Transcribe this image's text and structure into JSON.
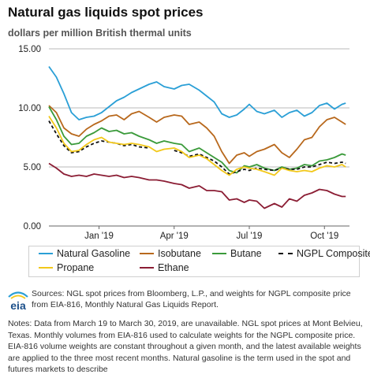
{
  "header": {
    "title": "Natural gas liquids spot prices",
    "subtitle": "dollars per million British thermal units"
  },
  "footer": {
    "logo_text": "eia",
    "sources": "Sources: NGL spot prices from Bloomberg, L.P., and weights for NGPL composite price from EIA-816, Monthly Natural Gas Liquids Report.",
    "notes": "Notes: Data from March 19 to March 30, 2019, are unavailable. NGL spot prices at Mont Belvieu, Texas. Monthly volumes from EIA-816 used to calculate weights for the NGPL composite price. EIA-816 volume weights are constant throughout a given month, and the latest available weights are applied to the three most recent months. Natural gasoline is the term used in the spot and futures markets to describe"
  },
  "colors": {
    "natural_gasoline": "#2a9fd6",
    "isobutane": "#b8681c",
    "butane": "#3a9a3a",
    "ngpl": "#111111",
    "propane": "#f2c81a",
    "ethane": "#8b1d34",
    "grid": "#b9b9b9"
  },
  "chart_data": {
    "type": "line",
    "x_unit": "months from Nov 2018",
    "xlim": [
      0,
      12
    ],
    "ylim": [
      0,
      15
    ],
    "yticks": [
      "0.00",
      "5.00",
      "10.00",
      "15.00"
    ],
    "xticks": [
      {
        "label": "Jan '19",
        "x": 2
      },
      {
        "label": "Apr '19",
        "x": 5
      },
      {
        "label": "Jul '19",
        "x": 8
      },
      {
        "label": "Oct '19",
        "x": 11
      }
    ],
    "grid": "horizontal",
    "legend_position": "bottom",
    "series": [
      {
        "name": "Natural Gasoline",
        "key": "natural_gasoline",
        "x": [
          0,
          0.3,
          0.6,
          0.9,
          1.2,
          1.5,
          1.8,
          2.1,
          2.4,
          2.7,
          3.0,
          3.3,
          3.6,
          4.0,
          4.3,
          4.6,
          5.0,
          5.3,
          5.6,
          6.0,
          6.3,
          6.6,
          6.9,
          7.2,
          7.5,
          7.8,
          8.0,
          8.3,
          8.6,
          9.0,
          9.3,
          9.6,
          9.9,
          10.2,
          10.5,
          10.8,
          11.1,
          11.4,
          11.7,
          11.85
        ],
        "y": [
          13.5,
          12.6,
          11.2,
          9.6,
          9.0,
          9.2,
          9.3,
          9.6,
          10.1,
          10.6,
          10.9,
          11.3,
          11.6,
          12.0,
          12.2,
          11.8,
          11.6,
          11.9,
          12.0,
          11.5,
          11.0,
          10.5,
          9.5,
          9.2,
          9.4,
          9.9,
          10.3,
          9.7,
          9.5,
          9.8,
          9.2,
          9.6,
          9.8,
          9.3,
          9.6,
          10.2,
          10.4,
          9.9,
          10.3,
          10.4
        ]
      },
      {
        "name": "Isobutane",
        "key": "isobutane",
        "x": [
          0,
          0.3,
          0.6,
          0.9,
          1.2,
          1.5,
          1.8,
          2.1,
          2.4,
          2.7,
          3.0,
          3.3,
          3.6,
          4.0,
          4.3,
          4.6,
          5.0,
          5.3,
          5.6,
          6.0,
          6.3,
          6.6,
          6.9,
          7.2,
          7.5,
          7.8,
          8.0,
          8.3,
          8.6,
          9.0,
          9.3,
          9.6,
          9.9,
          10.2,
          10.5,
          10.8,
          11.1,
          11.4,
          11.7,
          11.85
        ],
        "y": [
          10.2,
          9.6,
          8.3,
          7.8,
          7.6,
          8.2,
          8.6,
          8.9,
          9.3,
          9.4,
          9.0,
          9.5,
          9.7,
          9.2,
          8.8,
          9.2,
          9.4,
          9.3,
          8.6,
          8.8,
          8.3,
          7.6,
          6.3,
          5.3,
          6.0,
          6.2,
          5.9,
          6.3,
          6.5,
          6.9,
          6.2,
          5.8,
          6.5,
          7.3,
          7.5,
          8.4,
          9.0,
          9.2,
          8.8,
          8.6
        ]
      },
      {
        "name": "Butane",
        "key": "butane",
        "x": [
          0,
          0.3,
          0.6,
          0.9,
          1.2,
          1.5,
          1.8,
          2.1,
          2.4,
          2.7,
          3.0,
          3.3,
          3.6,
          4.0,
          4.3,
          4.6,
          5.0,
          5.3,
          5.6,
          6.0,
          6.3,
          6.6,
          6.9,
          7.2,
          7.5,
          7.8,
          8.0,
          8.3,
          8.6,
          9.0,
          9.3,
          9.6,
          9.9,
          10.2,
          10.5,
          10.8,
          11.1,
          11.4,
          11.7,
          11.85
        ],
        "y": [
          10.1,
          9.0,
          7.6,
          6.9,
          7.0,
          7.6,
          7.9,
          8.3,
          8.0,
          8.1,
          7.8,
          7.9,
          7.6,
          7.3,
          7.0,
          7.2,
          7.0,
          6.9,
          6.3,
          6.6,
          6.2,
          5.8,
          5.4,
          4.7,
          4.5,
          5.1,
          5.0,
          5.2,
          4.9,
          4.7,
          5.0,
          4.8,
          4.9,
          5.2,
          5.1,
          5.5,
          5.6,
          5.8,
          6.1,
          6.0
        ]
      },
      {
        "name": "NGPL Composite",
        "key": "ngpl",
        "x": [
          0,
          0.3,
          0.6,
          0.9,
          1.2,
          1.5,
          1.8,
          2.1,
          2.4,
          2.7,
          3.0,
          3.3,
          3.6,
          4.0,
          4.3,
          4.6,
          5.0,
          5.3,
          5.6,
          6.0,
          6.3,
          6.6,
          6.9,
          7.2,
          7.5,
          7.8,
          8.0,
          8.3,
          8.6,
          9.0,
          9.3,
          9.6,
          9.9,
          10.2,
          10.5,
          10.8,
          11.1,
          11.4,
          11.7,
          11.85
        ],
        "y": [
          8.9,
          7.8,
          6.8,
          6.2,
          6.3,
          6.7,
          7.0,
          7.2,
          7.1,
          7.0,
          6.8,
          6.9,
          6.7,
          6.6,
          null,
          null,
          6.4,
          6.2,
          5.9,
          6.1,
          5.8,
          5.5,
          5.0,
          4.4,
          4.6,
          4.8,
          4.7,
          4.9,
          4.8,
          4.7,
          4.9,
          4.8,
          4.8,
          5.0,
          5.0,
          5.2,
          5.4,
          5.3,
          5.4,
          5.3
        ]
      },
      {
        "name": "Propane",
        "key": "propane",
        "x": [
          0,
          0.3,
          0.6,
          0.9,
          1.2,
          1.5,
          1.8,
          2.1,
          2.4,
          2.7,
          3.0,
          3.3,
          3.6,
          4.0,
          4.3,
          4.6,
          5.0,
          5.3,
          5.6,
          6.0,
          6.3,
          6.6,
          6.9,
          7.2,
          7.5,
          7.8,
          8.0,
          8.3,
          8.6,
          9.0,
          9.3,
          9.6,
          9.9,
          10.2,
          10.5,
          10.8,
          11.1,
          11.4,
          11.7,
          11.85
        ],
        "y": [
          9.3,
          8.3,
          7.0,
          6.3,
          6.4,
          6.9,
          7.3,
          7.5,
          7.1,
          7.0,
          6.9,
          7.0,
          6.9,
          6.7,
          6.3,
          6.5,
          6.6,
          6.3,
          5.8,
          6.0,
          5.7,
          5.2,
          4.7,
          4.3,
          4.8,
          5.0,
          4.9,
          4.8,
          4.6,
          4.3,
          4.9,
          4.7,
          4.6,
          4.7,
          4.6,
          4.9,
          5.1,
          5.0,
          5.2,
          5.0
        ]
      },
      {
        "name": "Ethane",
        "key": "ethane",
        "x": [
          0,
          0.3,
          0.6,
          0.9,
          1.2,
          1.5,
          1.8,
          2.1,
          2.4,
          2.7,
          3.0,
          3.3,
          3.6,
          4.0,
          4.3,
          4.6,
          5.0,
          5.3,
          5.6,
          6.0,
          6.3,
          6.6,
          6.9,
          7.2,
          7.5,
          7.8,
          8.0,
          8.3,
          8.6,
          9.0,
          9.3,
          9.6,
          9.9,
          10.2,
          10.5,
          10.8,
          11.1,
          11.4,
          11.7,
          11.85
        ],
        "y": [
          5.3,
          4.9,
          4.4,
          4.2,
          4.3,
          4.2,
          4.4,
          4.3,
          4.2,
          4.3,
          4.1,
          4.2,
          4.1,
          3.9,
          3.9,
          3.8,
          3.6,
          3.5,
          3.2,
          3.4,
          3.0,
          3.0,
          2.9,
          2.2,
          2.3,
          2.0,
          2.2,
          2.1,
          1.5,
          1.9,
          1.6,
          2.3,
          2.1,
          2.6,
          2.8,
          3.1,
          3.0,
          2.7,
          2.5,
          2.5
        ]
      }
    ]
  }
}
